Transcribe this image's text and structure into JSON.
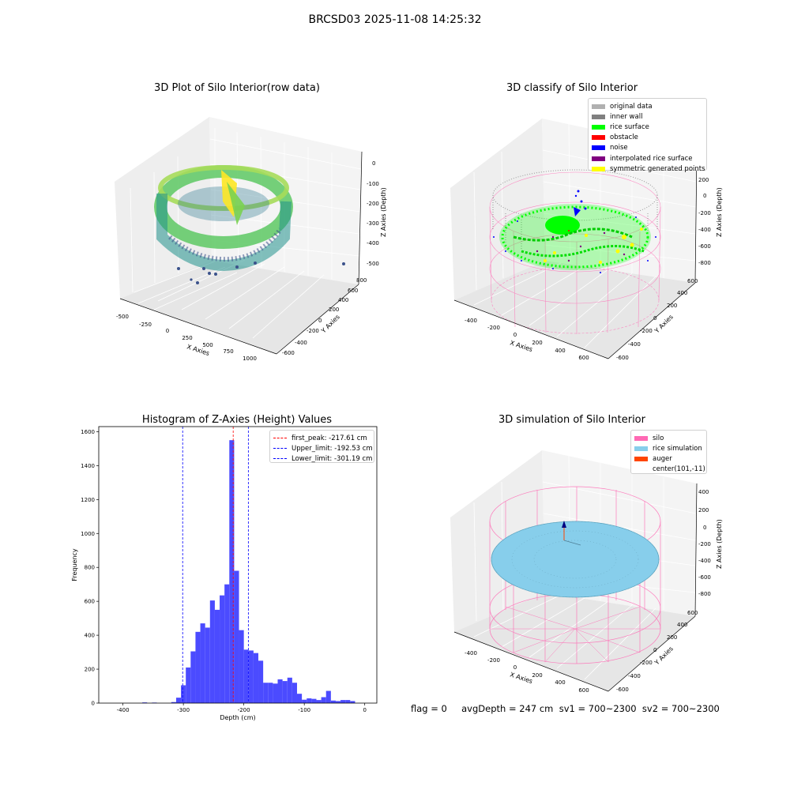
{
  "figure": {
    "suptitle": "BRCSD03 2025-11-08 14:25:32",
    "footer": "flag = 0     avgDepth = 247 cm  sv1 = 700~2300  sv2 = 700~2300"
  },
  "colors": {
    "histogram_bar": "#4b4bff",
    "silo_wire": "#ff69b4",
    "rice_surface": "#00ff00",
    "rice_simulation": "#87ceeb"
  },
  "chart_data": [
    {
      "id": "raw",
      "type": "scatter3d",
      "title": "3D Plot of Silo Interior(row data)",
      "xlabel": "X Axies",
      "ylabel": "Y Axies",
      "zlabel": "Z Axies (Depth)",
      "xticks": [
        "-500",
        "-250",
        "0",
        "250",
        "500",
        "750",
        "1000"
      ],
      "yticks": [
        "-600",
        "-400",
        "-200",
        "0",
        "200",
        "400",
        "600",
        "800"
      ],
      "zticks": [
        "0",
        "-100",
        "-200",
        "-300",
        "-400",
        "-500"
      ],
      "colormap": "viridis",
      "outlier_points": [
        [
          -40,
          -180,
          -460
        ],
        [
          -60,
          -240,
          -480
        ],
        [
          300,
          -120,
          -500
        ],
        [
          1000,
          700,
          -470
        ]
      ]
    },
    {
      "id": "classify",
      "type": "scatter3d",
      "title": "3D classify of Silo Interior",
      "xlabel": "X Axies",
      "ylabel": "Y Axies",
      "zlabel": "Z Axies (Depth)",
      "xticks": [
        "-400",
        "-200",
        "0",
        "200",
        "400",
        "600"
      ],
      "yticks": [
        "-600",
        "-400",
        "-200",
        "0",
        "200",
        "400",
        "600"
      ],
      "zticks": [
        "200",
        "0",
        "-200",
        "-400",
        "-600",
        "-800"
      ],
      "legend": [
        {
          "label": "original data",
          "color": "#b0b0b0"
        },
        {
          "label": "inner wall",
          "color": "#808080"
        },
        {
          "label": "rice surface",
          "color": "#00ff00"
        },
        {
          "label": "obstacle",
          "color": "#ff0000"
        },
        {
          "label": "noise",
          "color": "#0000ff"
        },
        {
          "label": "interpolated rice surface",
          "color": "#800080"
        },
        {
          "label": "symmetric generated points",
          "color": "#ffff00"
        }
      ]
    },
    {
      "id": "histogram",
      "type": "bar",
      "title": "Histogram of Z-Axies (Height) Values",
      "xlabel": "Depth (cm)",
      "ylabel": "Frequency",
      "xlim": [
        -440,
        20
      ],
      "ylim": [
        0,
        1630
      ],
      "xticks": [
        -400,
        -300,
        -200,
        -100,
        0
      ],
      "yticks": [
        0,
        200,
        400,
        600,
        800,
        1000,
        1200,
        1400,
        1600
      ],
      "bin_width": 8,
      "bins": [
        {
          "x": -364,
          "value": 4
        },
        {
          "x": -348,
          "value": 3
        },
        {
          "x": -316,
          "value": 6
        },
        {
          "x": -308,
          "value": 32
        },
        {
          "x": -300,
          "value": 105
        },
        {
          "x": -292,
          "value": 210
        },
        {
          "x": -284,
          "value": 305
        },
        {
          "x": -276,
          "value": 420
        },
        {
          "x": -268,
          "value": 470
        },
        {
          "x": -260,
          "value": 445
        },
        {
          "x": -252,
          "value": 605
        },
        {
          "x": -244,
          "value": 550
        },
        {
          "x": -236,
          "value": 635
        },
        {
          "x": -228,
          "value": 700
        },
        {
          "x": -220,
          "value": 1550
        },
        {
          "x": -212,
          "value": 780
        },
        {
          "x": -204,
          "value": 430
        },
        {
          "x": -196,
          "value": 315
        },
        {
          "x": -188,
          "value": 310
        },
        {
          "x": -180,
          "value": 295
        },
        {
          "x": -172,
          "value": 250
        },
        {
          "x": -164,
          "value": 120
        },
        {
          "x": -156,
          "value": 120
        },
        {
          "x": -148,
          "value": 115
        },
        {
          "x": -140,
          "value": 140
        },
        {
          "x": -132,
          "value": 130
        },
        {
          "x": -124,
          "value": 150
        },
        {
          "x": -116,
          "value": 120
        },
        {
          "x": -108,
          "value": 55
        },
        {
          "x": -100,
          "value": 20
        },
        {
          "x": -92,
          "value": 28
        },
        {
          "x": -84,
          "value": 25
        },
        {
          "x": -76,
          "value": 18
        },
        {
          "x": -68,
          "value": 35
        },
        {
          "x": -60,
          "value": 72
        },
        {
          "x": -52,
          "value": 15
        },
        {
          "x": -44,
          "value": 12
        },
        {
          "x": -36,
          "value": 18
        },
        {
          "x": -28,
          "value": 18
        },
        {
          "x": -20,
          "value": 12
        }
      ],
      "vlines": [
        {
          "label": "first_peak: -217.61 cm",
          "value": -217.61,
          "color": "#ff0000"
        },
        {
          "label": "Upper_limit: -192.53 cm",
          "value": -192.53,
          "color": "#0000ff"
        },
        {
          "label": "Lower_limit: -301.19 cm",
          "value": -301.19,
          "color": "#0000ff"
        }
      ]
    },
    {
      "id": "simulation",
      "type": "surface3d",
      "title": "3D simulation of Silo Interior",
      "xlabel": "X Axies",
      "ylabel": "Y Axies",
      "zlabel": "Z Axies (Depth)",
      "xticks": [
        "-400",
        "-200",
        "0",
        "200",
        "400",
        "600"
      ],
      "yticks": [
        "-600",
        "-400",
        "-200",
        "0",
        "200",
        "400",
        "600"
      ],
      "zticks": [
        "400",
        "200",
        "0",
        "-200",
        "-400",
        "-600",
        "-800"
      ],
      "legend": [
        {
          "label": "silo",
          "color": "#ff69b4"
        },
        {
          "label": "rice simulation",
          "color": "#87ceeb"
        },
        {
          "label": "auger",
          "color": "#ff4500"
        },
        {
          "label": "center(101,-11)",
          "color": "#ffffff"
        }
      ]
    }
  ]
}
